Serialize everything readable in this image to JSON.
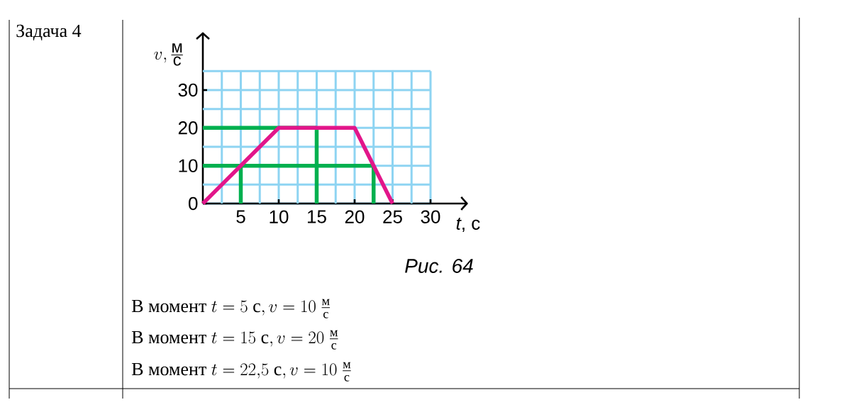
{
  "chart_data": {
    "type": "line",
    "xlabel": "*t*, с",
    "ylabel": "v,\\frac{\\text{м}}{\\text{с}}",
    "annotations": [
      "Задача 4",
      "Рис. 64",
      "\\text{В момент } t = 5\\text{ с}, v = 10\\ \\frac{\\text{м}}{\\text{с}}",
      "\\text{В момент } t = 15\\text{ с}, v = 20\\ \\frac{\\text{м}}{\\text{с}}",
      "\\text{В момент } t = 22{,}5\\text{ с}, v = 10\\ \\frac{\\text{м}}{\\text{с}}"
    ],
    "xlim": [
      0,
      30
    ],
    "ylim": [
      0,
      35
    ],
    "xticks": [
      {
        "value": 2.5,
        "label": null
      },
      5,
      {
        "value": 7.5,
        "label": null
      },
      10,
      {
        "value": 12.5,
        "label": null
      },
      15,
      {
        "value": 17.5,
        "label": null
      },
      20,
      {
        "value": 22.5,
        "label": null
      },
      25,
      {
        "value": 27.5,
        "label": null
      },
      30
    ],
    "yticks": [
      0,
      {
        "value": 5,
        "label": null
      },
      10,
      {
        "value": 15,
        "label": null
      },
      20,
      {
        "value": 25,
        "label": null
      },
      30,
      {
        "value": 35,
        "label": null
      }
    ],
    "grid": true,
    "series": [
      {
        "color": "#00b04f",
        "x": [
          0,
          15
        ],
        "values": [
          20,
          20
        ]
      },
      {
        "color": "#00b04f",
        "x": [
          15,
          15
        ],
        "values": [
          0,
          20
        ]
      },
      {
        "color": "#00b04f",
        "x": [
          0,
          22.5
        ],
        "values": [
          10,
          10
        ]
      },
      {
        "color": "#00b04f",
        "x": [
          5,
          5
        ],
        "values": [
          0,
          10
        ]
      },
      {
        "color": "#00b04f",
        "x": [
          22.5,
          22.5
        ],
        "values": [
          0,
          10
        ]
      },
      {
        "color": "#e2168a",
        "x": [
          0,
          10,
          20,
          25
        ],
        "values": [
          0,
          20,
          20,
          0
        ]
      }
    ]
  }
}
